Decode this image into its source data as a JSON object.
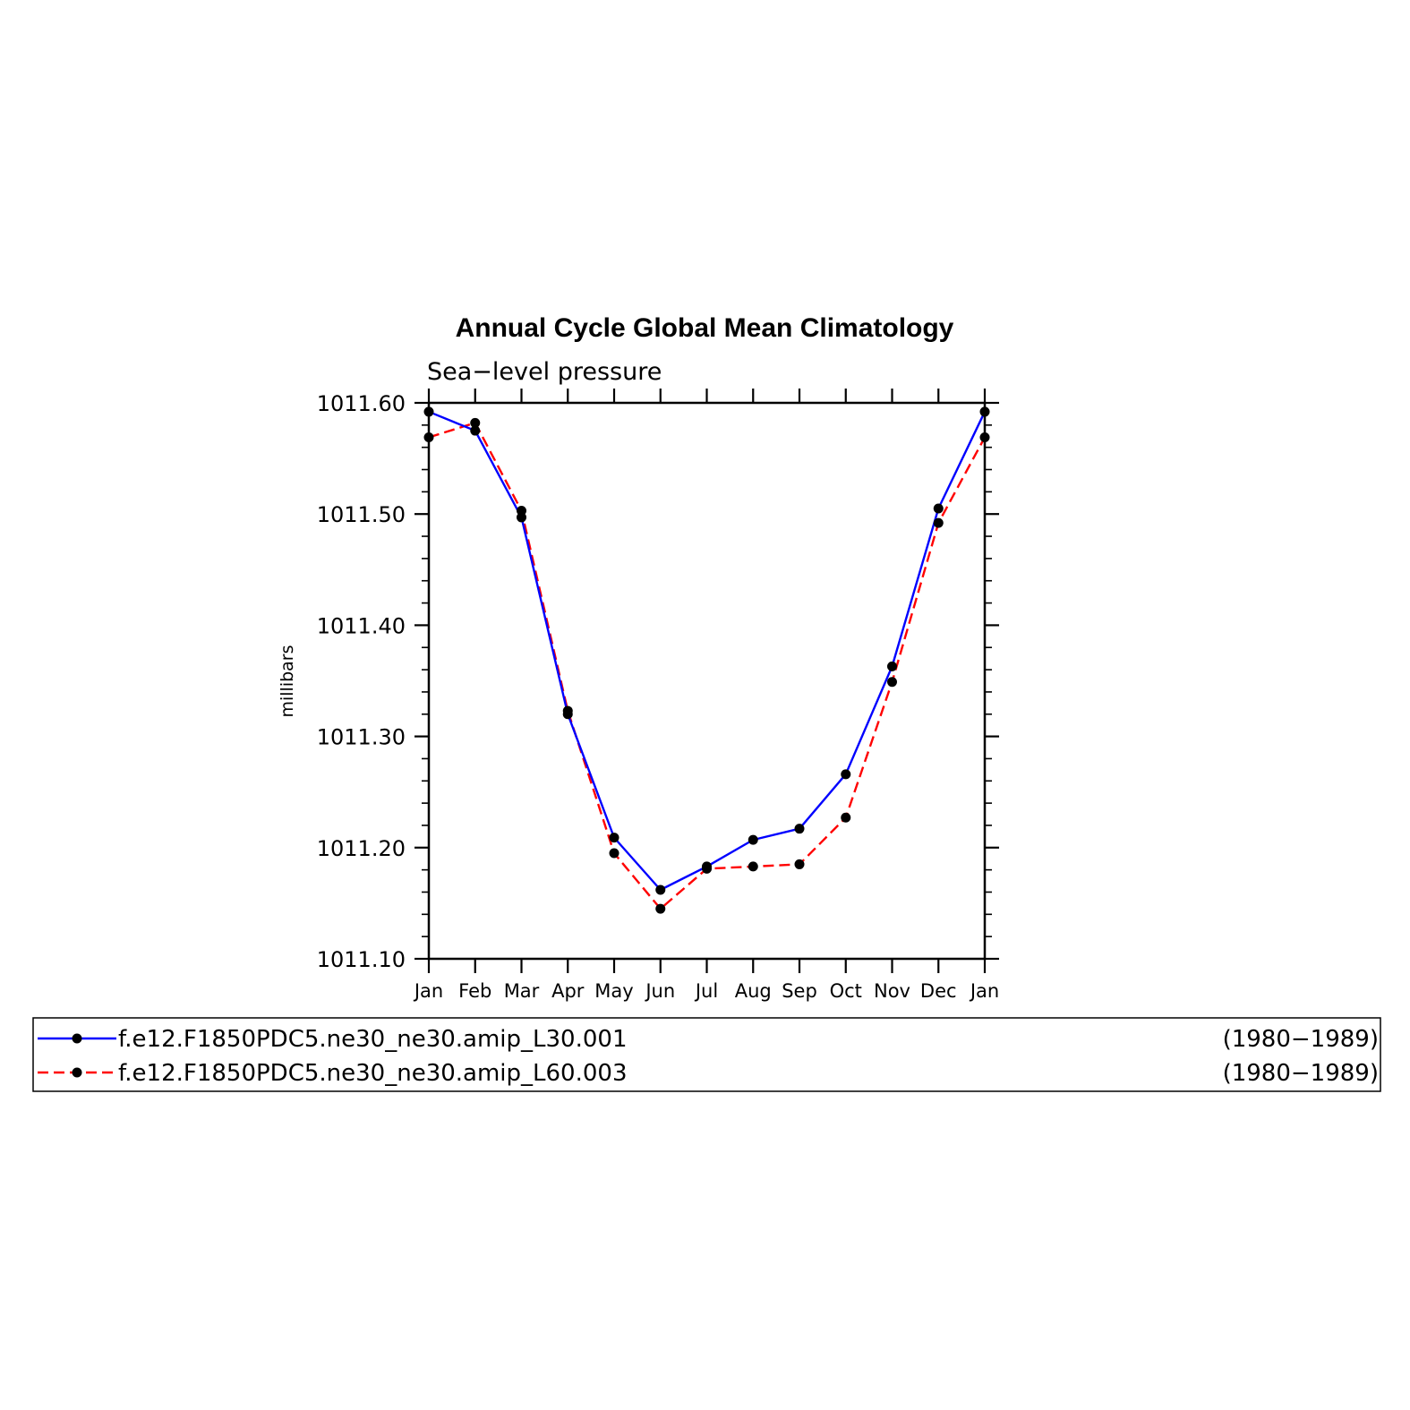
{
  "chart_data": {
    "type": "line",
    "title": "Annual Cycle Global Mean Climatology",
    "subtitle": "Sea−level pressure",
    "ylabel": "millibars",
    "xlabel": "",
    "categories": [
      "Jan",
      "Feb",
      "Mar",
      "Apr",
      "May",
      "Jun",
      "Jul",
      "Aug",
      "Sep",
      "Oct",
      "Nov",
      "Dec",
      "Jan"
    ],
    "ylim": [
      1011.1,
      1011.6
    ],
    "yticks": [
      "1011.10",
      "1011.20",
      "1011.30",
      "1011.40",
      "1011.50",
      "1011.60"
    ],
    "grid": false,
    "legend_position": "bottom",
    "series": [
      {
        "name": "f.e12.F1850PDC5.ne30_ne30.amip_L30.001",
        "period": "(1980−1989)",
        "color": "#0000ff",
        "dash": "solid",
        "marker": "filled-circle",
        "values": [
          1011.592,
          1011.575,
          1011.497,
          1011.32,
          1011.209,
          1011.162,
          1011.183,
          1011.207,
          1011.217,
          1011.266,
          1011.363,
          1011.505,
          1011.592
        ]
      },
      {
        "name": "f.e12.F1850PDC5.ne30_ne30.amip_L60.003",
        "period": "(1980−1989)",
        "color": "#ff0000",
        "dash": "dashed",
        "marker": "filled-circle",
        "values": [
          1011.569,
          1011.582,
          1011.503,
          1011.323,
          1011.195,
          1011.145,
          1011.181,
          1011.183,
          1011.185,
          1011.227,
          1011.349,
          1011.492,
          1011.569
        ]
      }
    ]
  }
}
